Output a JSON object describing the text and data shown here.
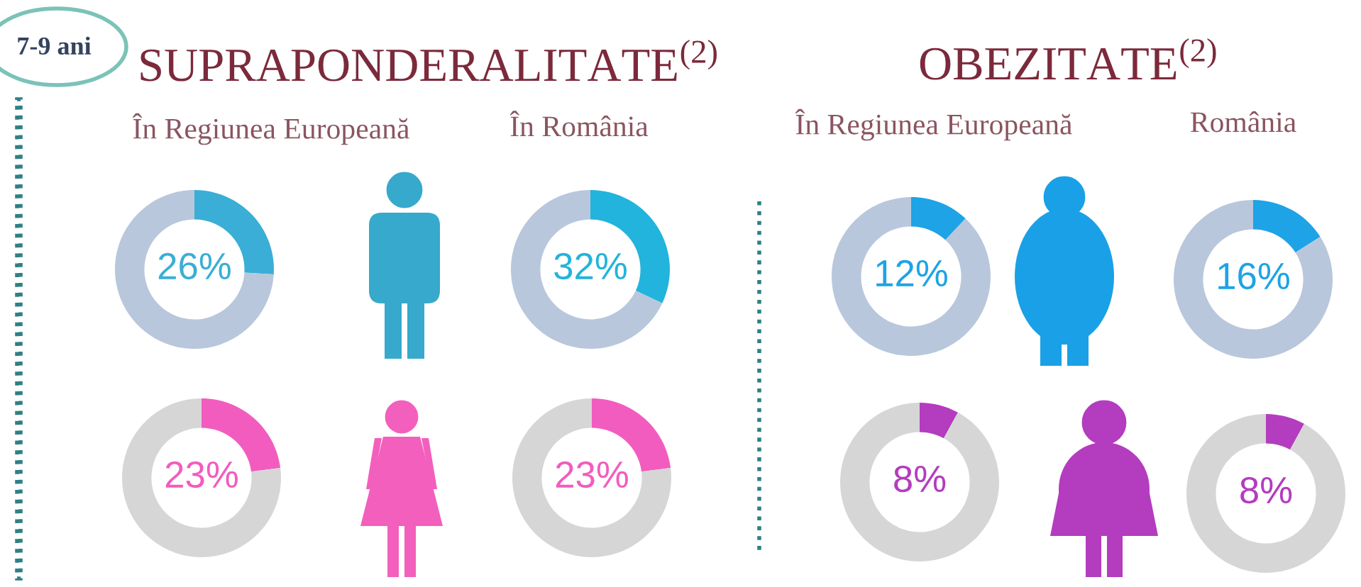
{
  "chart_data": [
    {
      "type": "donut",
      "title": "În Regiunea Europeană",
      "categories": [
        null,
        null
      ],
      "values": [
        26,
        74
      ],
      "colors": [
        "#3aaed6",
        "#b8c7dc"
      ],
      "value_labels": [
        "26%",
        null
      ],
      "annotations": [
        "7-9 ani",
        "SUPRAPONDERALITATE$^{(2)}$"
      ]
    },
    {
      "type": "donut",
      "title": "În România",
      "categories": [
        null,
        null
      ],
      "values": [
        32,
        68
      ],
      "colors": [
        "#22b4dc",
        "#b8c7dc"
      ],
      "value_labels": [
        "32%",
        null
      ]
    },
    {
      "type": "donut",
      "title": "În Regiunea Europeană",
      "categories": [
        null,
        null
      ],
      "values": [
        12,
        88
      ],
      "colors": [
        "#1ea3e6",
        "#b8c7dc"
      ],
      "value_labels": [
        "12%",
        null
      ],
      "annotations": [
        "OBEZITATE$^{(2)}$"
      ]
    },
    {
      "type": "donut",
      "title": "România",
      "categories": [
        null,
        null
      ],
      "values": [
        16,
        84
      ],
      "colors": [
        "#1ea3e6",
        "#b8c7dc"
      ],
      "value_labels": [
        "16%",
        null
      ]
    },
    {
      "type": "donut",
      "categories": [
        null,
        null
      ],
      "values": [
        23,
        77
      ],
      "colors": [
        "#f25cbf",
        "#d6d6d6"
      ],
      "value_labels": [
        "23%",
        null
      ]
    },
    {
      "type": "donut",
      "categories": [
        null,
        null
      ],
      "values": [
        23,
        77
      ],
      "colors": [
        "#f25cbf",
        "#d6d6d6"
      ],
      "value_labels": [
        "23%",
        null
      ]
    },
    {
      "type": "donut",
      "categories": [
        null,
        null
      ],
      "values": [
        8,
        92
      ],
      "colors": [
        "#b43cbf",
        "#d6d6d6"
      ],
      "value_labels": [
        "8%",
        null
      ]
    },
    {
      "type": "donut",
      "categories": [
        null,
        null
      ],
      "values": [
        8,
        92
      ],
      "colors": [
        "#b43cbf",
        "#d6d6d6"
      ],
      "value_labels": [
        "8%",
        null
      ]
    }
  ]
}
